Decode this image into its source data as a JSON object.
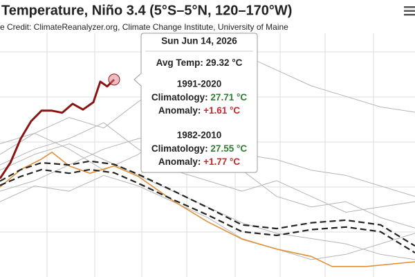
{
  "chart_data": {
    "type": "line",
    "title": "Temperature, Niño 3.4 (5°S–5°N, 120–170°W)",
    "subtitle": "e Credit: ClimateReanalyzer.org, Climate Change Institute, University of Maine",
    "xlim": [
      0,
      600
    ],
    "ylim": [
      25.57,
      30.2
    ],
    "series": [
      {
        "color": "#b5b5b5",
        "x": [
          0,
          50,
          100,
          150,
          200,
          250,
          300,
          350,
          400,
          450,
          500,
          550,
          600
        ],
        "values": [
          27.9,
          28.3,
          28.6,
          28.4,
          28.9,
          29.3,
          29.6,
          29.8,
          29.5,
          29.2,
          29.0,
          28.8,
          28.7
        ]
      },
      {
        "color": "#b5b5b5",
        "x": [
          0,
          50,
          100,
          150,
          200,
          250,
          300,
          350,
          400,
          450,
          500,
          550,
          600
        ],
        "values": [
          27.6,
          27.9,
          28.1,
          27.8,
          27.5,
          27.2,
          26.9,
          26.6,
          26.4,
          26.3,
          26.2,
          26.0,
          25.9
        ]
      },
      {
        "color": "#b5b5b5",
        "x": [
          0,
          50,
          100,
          150,
          200,
          250,
          300,
          350,
          400,
          450,
          500,
          550,
          600
        ],
        "values": [
          27.2,
          27.4,
          27.7,
          28.0,
          28.2,
          28.3,
          28.1,
          27.9,
          27.8,
          27.6,
          27.5,
          27.3,
          27.1
        ]
      },
      {
        "color": "#b5b5b5",
        "x": [
          0,
          50,
          100,
          150,
          200,
          250,
          300,
          350,
          400,
          450,
          500,
          550,
          600
        ],
        "values": [
          28.1,
          28.3,
          28.0,
          27.6,
          27.9,
          28.4,
          28.2,
          27.6,
          27.1,
          26.9,
          27.0,
          26.7,
          26.5
        ]
      },
      {
        "color": "#b5b5b5",
        "x": [
          0,
          50,
          100,
          150,
          200,
          250,
          300,
          350,
          400,
          450,
          500,
          550,
          600
        ],
        "values": [
          27.0,
          27.3,
          27.2,
          27.5,
          27.3,
          27.0,
          26.7,
          26.3,
          26.1,
          25.9,
          26.0,
          26.2,
          26.4
        ]
      },
      {
        "color": "#b5b5b5",
        "x": [
          0,
          50,
          100,
          150,
          200,
          250,
          300,
          350,
          400,
          450,
          500,
          550,
          600
        ],
        "values": [
          27.7,
          28.0,
          28.2,
          28.5,
          28.0,
          27.6,
          27.4,
          27.2,
          27.4,
          27.1,
          26.8,
          26.9,
          27.0
        ]
      },
      {
        "color": "#e0903a",
        "x": [
          0,
          30,
          60,
          75,
          100,
          130,
          165,
          200,
          250,
          300,
          350,
          400,
          450,
          480,
          530,
          600
        ],
        "values": [
          27.28,
          27.61,
          27.81,
          27.94,
          27.68,
          27.54,
          27.68,
          27.48,
          27.02,
          26.62,
          26.29,
          26.1,
          25.96,
          25.77,
          25.77,
          25.86
        ]
      },
      {
        "name": "1991-2020",
        "color": "#222222",
        "dashed": true,
        "x": [
          0,
          30,
          60,
          100,
          130,
          165,
          200,
          250,
          300,
          350,
          400,
          450,
          500,
          550,
          600
        ],
        "values": [
          27.39,
          27.61,
          27.74,
          27.7,
          27.77,
          27.71,
          27.52,
          27.21,
          26.89,
          26.56,
          26.49,
          26.6,
          26.65,
          26.56,
          26.16
        ]
      },
      {
        "name": "1982-2010",
        "color": "#222222",
        "dashed": true,
        "x": [
          0,
          30,
          60,
          100,
          130,
          165,
          200,
          250,
          300,
          350,
          400,
          450,
          500,
          550,
          600
        ],
        "values": [
          27.31,
          27.48,
          27.61,
          27.54,
          27.61,
          27.55,
          27.35,
          27.04,
          26.75,
          26.43,
          26.36,
          26.47,
          26.52,
          26.43,
          26.03
        ]
      },
      {
        "color": "#8b1414",
        "x": [
          0,
          15,
          30,
          45,
          60,
          75,
          90,
          105,
          120,
          135,
          145,
          155,
          165
        ],
        "values": [
          27.44,
          27.74,
          28.2,
          28.53,
          28.73,
          28.73,
          28.69,
          28.86,
          28.75,
          28.89,
          29.28,
          29.19,
          29.32
        ]
      }
    ],
    "tooltip": {
      "date": "Sun Jun 14, 2026",
      "avg": {
        "label": "Avg Temp:",
        "value": 29.32,
        "value_label": "29.32 °C"
      },
      "groups": [
        {
          "title": "1991-2020",
          "climatology": {
            "label": "Climatology:",
            "value": 27.71,
            "value_label": "27.71 °C"
          },
          "anomaly": {
            "label": "Anomaly:",
            "value": 1.61,
            "value_label": "+1.61 °C"
          }
        },
        {
          "title": "1982-2010",
          "climatology": {
            "label": "Climatology:",
            "value": 27.55,
            "value_label": "27.55 °C"
          },
          "anomaly": {
            "label": "Anomaly:",
            "value": 1.77,
            "value_label": "+1.77 °C"
          }
        }
      ]
    }
  }
}
